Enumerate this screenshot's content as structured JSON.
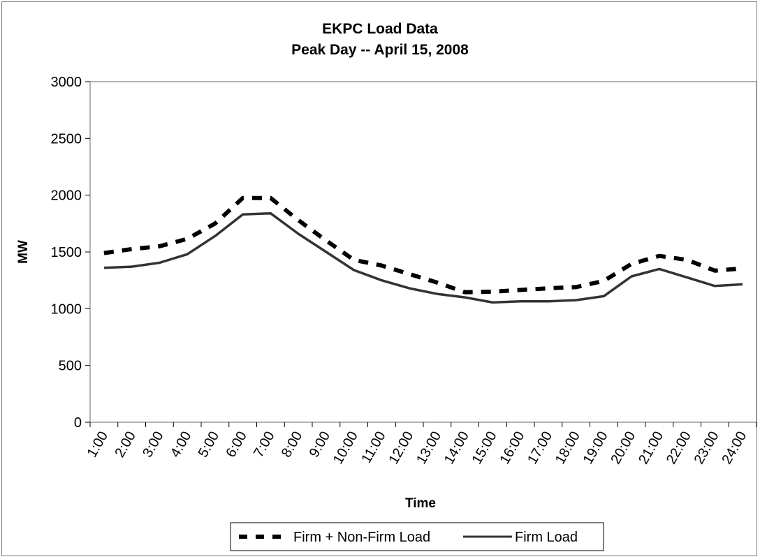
{
  "chart_data": {
    "type": "line",
    "title": "EKPC Load Data",
    "subtitle": "Peak Day -- April 15, 2008",
    "xlabel": "Time",
    "ylabel": "MW",
    "categories": [
      "1:00",
      "2:00",
      "3:00",
      "4:00",
      "5:00",
      "6:00",
      "7:00",
      "8:00",
      "9:00",
      "10:00",
      "11:00",
      "12:00",
      "13:00",
      "14:00",
      "15:00",
      "16:00",
      "17:00",
      "18:00",
      "19:00",
      "20:00",
      "21:00",
      "22:00",
      "23:00",
      "24:00"
    ],
    "ylim": [
      0,
      3000
    ],
    "yticks": [
      0,
      500,
      1000,
      1500,
      2000,
      2500,
      3000
    ],
    "grid": false,
    "legend": "bottom",
    "series": [
      {
        "name": "Firm + Non-Firm Load",
        "style": "dashed",
        "color": "#000000",
        "values": [
          1490,
          1525,
          1550,
          1615,
          1750,
          1975,
          1975,
          1780,
          1600,
          1430,
          1380,
          1305,
          1230,
          1145,
          1150,
          1165,
          1180,
          1190,
          1245,
          1395,
          1465,
          1430,
          1335,
          1355
        ]
      },
      {
        "name": "Firm Load",
        "style": "solid",
        "color": "#333333",
        "values": [
          1360,
          1370,
          1405,
          1480,
          1640,
          1830,
          1840,
          1660,
          1500,
          1340,
          1250,
          1180,
          1130,
          1100,
          1055,
          1065,
          1065,
          1075,
          1110,
          1285,
          1350,
          1275,
          1200,
          1215
        ]
      }
    ]
  }
}
